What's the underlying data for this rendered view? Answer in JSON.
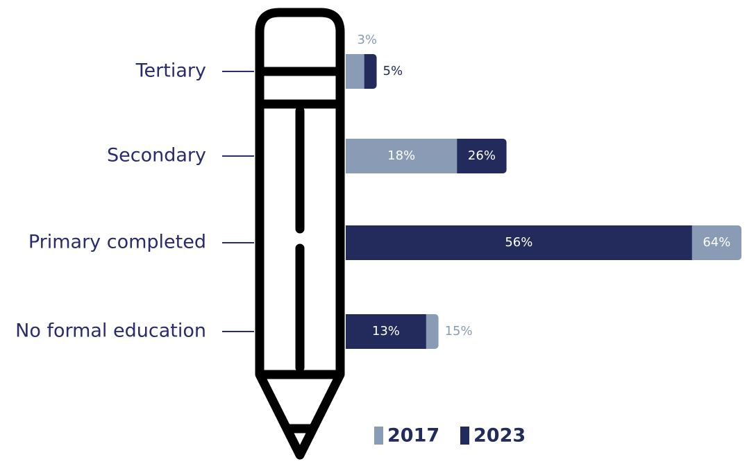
{
  "chart_data": {
    "type": "bar",
    "categories": [
      "Tertiary",
      "Secondary",
      "Primary completed",
      "No formal education"
    ],
    "series": [
      {
        "name": "2017",
        "color": "#8a9bb5",
        "values": [
          3,
          18,
          64,
          15
        ],
        "value_labels": [
          "3%",
          "18%",
          "64%",
          "15%"
        ]
      },
      {
        "name": "2023",
        "color": "#232a5c",
        "values": [
          5,
          26,
          56,
          13
        ],
        "value_labels": [
          "5%",
          "26%",
          "56%",
          "13%"
        ]
      }
    ]
  }
}
